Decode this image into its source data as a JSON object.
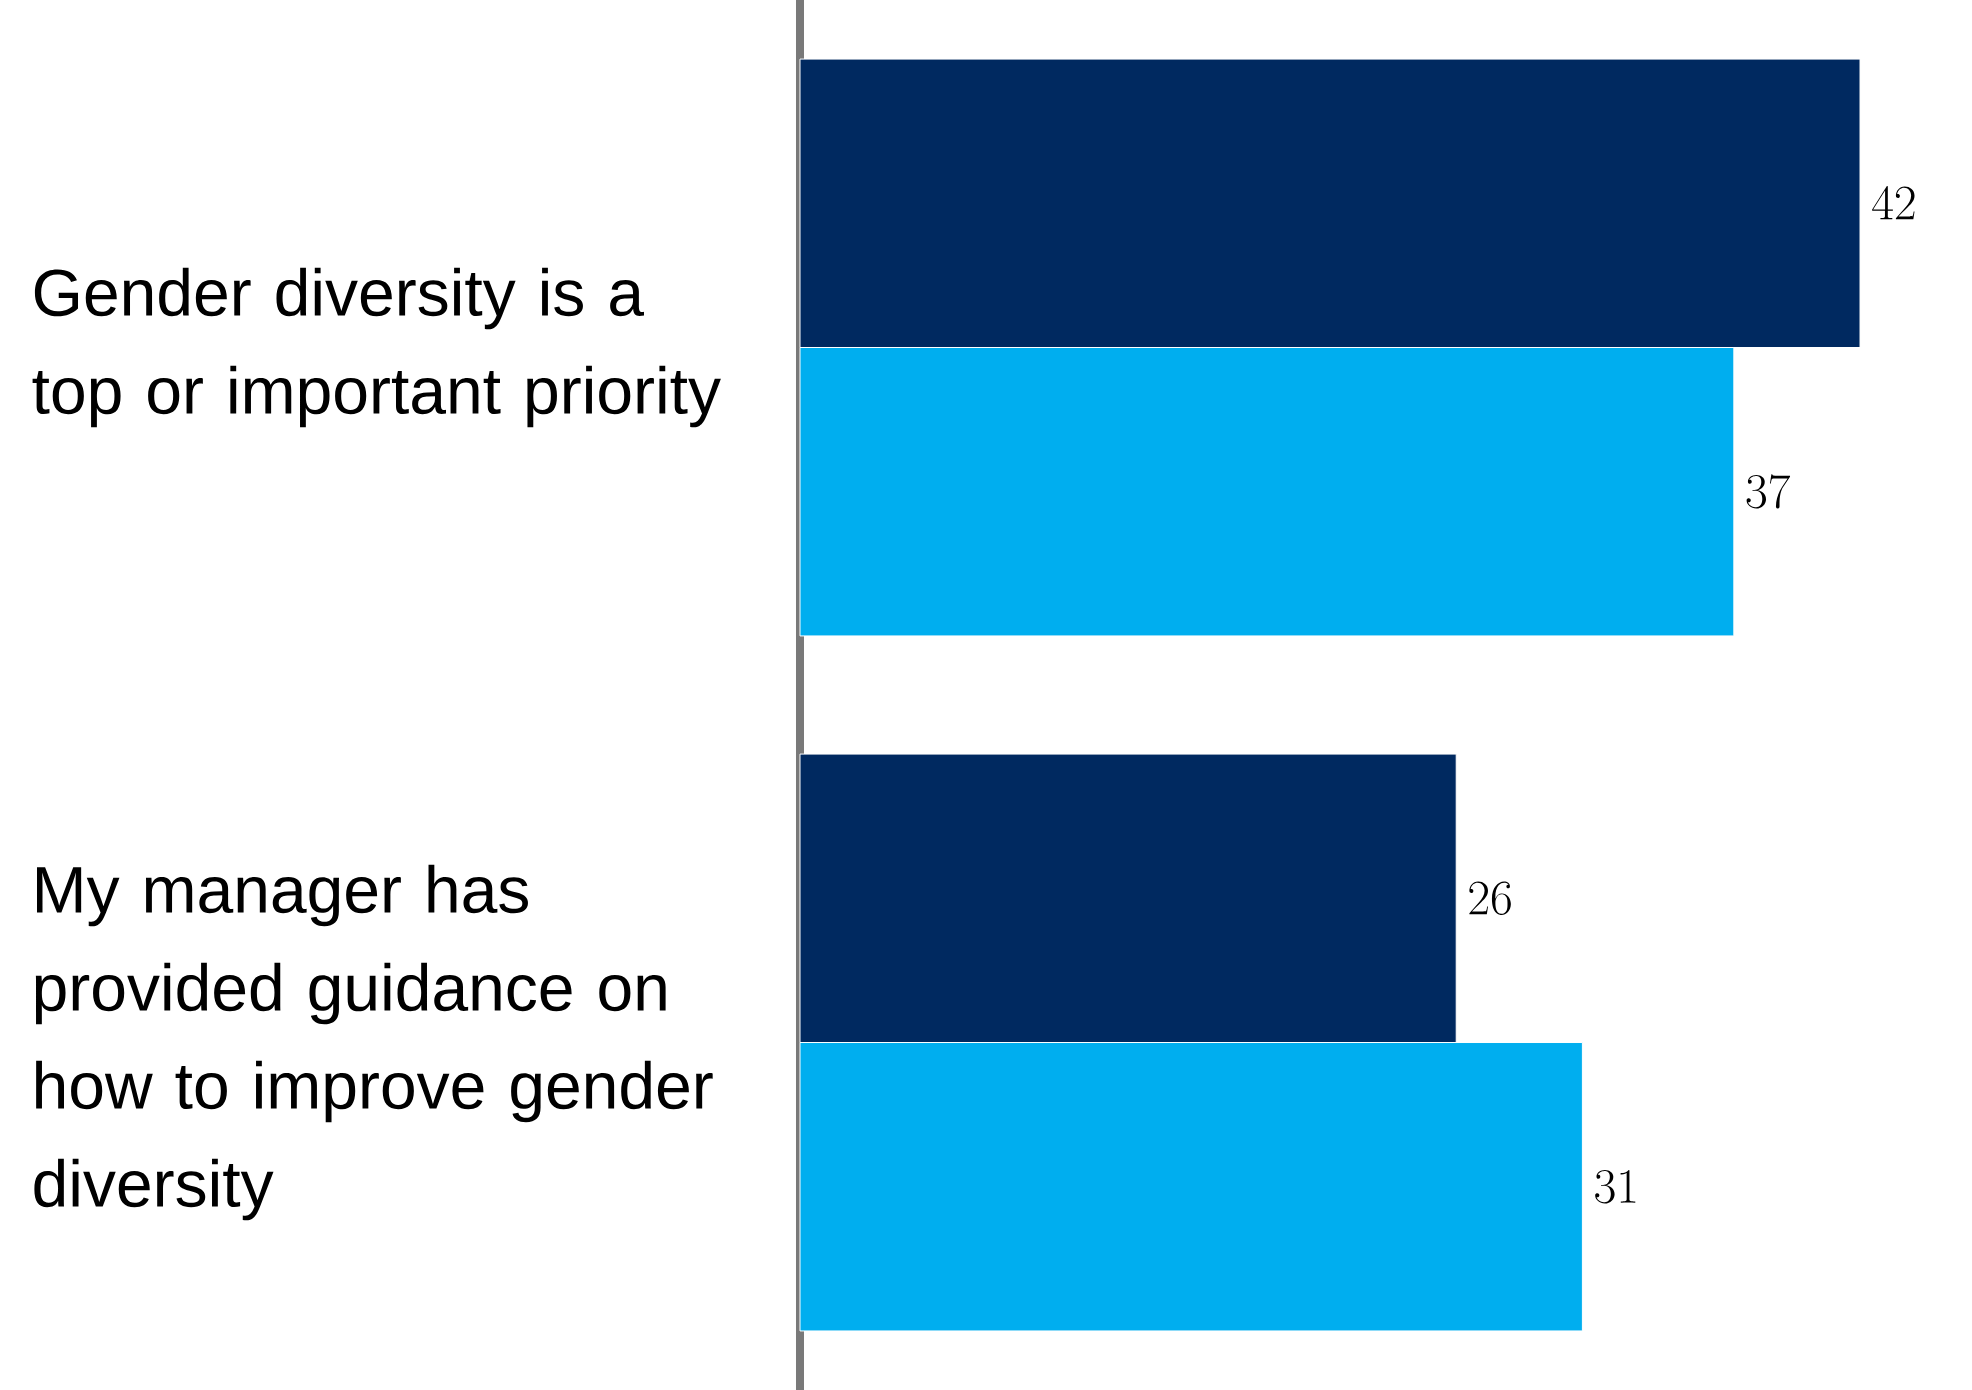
{
  "chart_data": {
    "type": "bar",
    "orientation": "horizontal",
    "data_labels": true,
    "categories": [
      "Gender diversity is a top or important priority",
      "My manager has provided guidance on how to improve gender diversity"
    ],
    "series": [
      {
        "color": "#002960",
        "values": [
          42,
          26
        ]
      },
      {
        "color": "#00aeef",
        "values": [
          37,
          31
        ]
      }
    ]
  }
}
